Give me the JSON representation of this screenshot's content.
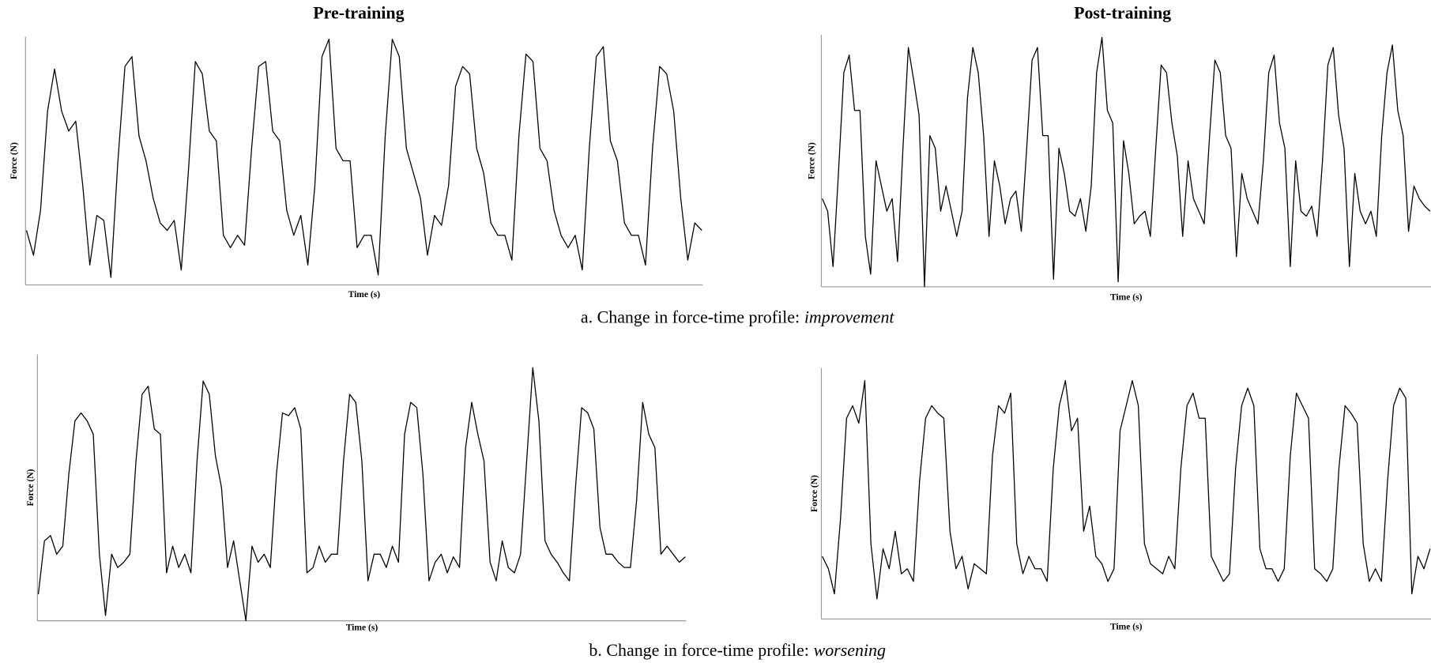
{
  "chart_data": [
    {
      "type": "line",
      "title": "Pre-training",
      "xlabel": "Time (s)",
      "ylabel": "Force (N)",
      "color": "#000000",
      "ylim": [
        0,
        100
      ],
      "values": [
        22,
        12,
        30,
        70,
        87,
        70,
        62,
        66,
        40,
        8,
        28,
        26,
        3,
        50,
        88,
        92,
        60,
        50,
        35,
        25,
        22,
        26,
        6,
        45,
        90,
        85,
        62,
        58,
        20,
        15,
        20,
        16,
        55,
        88,
        90,
        62,
        58,
        30,
        20,
        28,
        8,
        40,
        92,
        99,
        55,
        50,
        50,
        15,
        20,
        20,
        4,
        60,
        99,
        92,
        55,
        45,
        35,
        12,
        28,
        24,
        40,
        80,
        88,
        85,
        55,
        45,
        25,
        20,
        20,
        10,
        60,
        93,
        90,
        55,
        50,
        30,
        20,
        15,
        20,
        6,
        55,
        92,
        96,
        58,
        50,
        25,
        20,
        20,
        8,
        55,
        88,
        85,
        70,
        35,
        10,
        25,
        22
      ]
    },
    {
      "type": "line",
      "title": "Post-training",
      "xlabel": "Time (s)",
      "ylabel": "Force (N)",
      "color": "#000000",
      "ylim": [
        0,
        100
      ],
      "values": [
        35,
        30,
        8,
        45,
        85,
        92,
        70,
        70,
        20,
        5,
        50,
        40,
        30,
        35,
        10,
        55,
        95,
        82,
        68,
        0,
        60,
        55,
        30,
        40,
        30,
        20,
        30,
        75,
        95,
        85,
        60,
        20,
        50,
        40,
        25,
        35,
        38,
        22,
        55,
        90,
        95,
        60,
        60,
        3,
        55,
        45,
        30,
        28,
        35,
        22,
        40,
        85,
        99,
        70,
        65,
        2,
        58,
        45,
        25,
        28,
        30,
        20,
        55,
        88,
        85,
        65,
        52,
        20,
        50,
        35,
        30,
        25,
        60,
        90,
        85,
        60,
        55,
        12,
        45,
        35,
        30,
        25,
        50,
        85,
        92,
        65,
        55,
        8,
        50,
        30,
        28,
        32,
        20,
        50,
        88,
        95,
        68,
        55,
        8,
        45,
        30,
        25,
        30,
        20,
        60,
        85,
        96,
        70,
        60,
        22,
        40,
        35,
        32,
        30
      ]
    },
    {
      "type": "line",
      "xlabel": "Time (s)",
      "ylabel": "Force (N)",
      "color": "#000000",
      "ylim": [
        0,
        100
      ],
      "values": [
        10,
        30,
        32,
        25,
        28,
        55,
        75,
        78,
        75,
        70,
        25,
        2,
        25,
        20,
        22,
        25,
        60,
        85,
        88,
        72,
        70,
        18,
        28,
        20,
        25,
        18,
        60,
        90,
        85,
        62,
        50,
        20,
        30,
        15,
        0,
        28,
        22,
        25,
        20,
        55,
        78,
        77,
        80,
        72,
        18,
        20,
        28,
        22,
        25,
        25,
        60,
        85,
        82,
        60,
        15,
        25,
        25,
        20,
        28,
        22,
        70,
        82,
        80,
        55,
        15,
        22,
        25,
        18,
        24,
        20,
        65,
        82,
        70,
        60,
        22,
        15,
        30,
        20,
        18,
        25,
        60,
        95,
        75,
        30,
        25,
        22,
        18,
        15,
        50,
        80,
        78,
        72,
        35,
        25,
        25,
        22,
        20,
        20,
        45,
        82,
        70,
        65,
        25,
        28,
        25,
        22,
        24
      ]
    },
    {
      "type": "line",
      "xlabel": "Time (s)",
      "ylabel": "Force (N)",
      "color": "#000000",
      "ylim": [
        0,
        100
      ],
      "values": [
        25,
        20,
        10,
        40,
        80,
        85,
        78,
        95,
        30,
        8,
        28,
        20,
        35,
        18,
        20,
        15,
        55,
        80,
        85,
        82,
        80,
        35,
        20,
        25,
        12,
        22,
        20,
        18,
        65,
        85,
        82,
        90,
        30,
        18,
        25,
        20,
        20,
        15,
        60,
        85,
        95,
        75,
        80,
        35,
        45,
        25,
        22,
        15,
        20,
        75,
        85,
        95,
        85,
        30,
        22,
        20,
        18,
        25,
        20,
        60,
        85,
        90,
        80,
        80,
        25,
        20,
        15,
        18,
        60,
        85,
        92,
        85,
        28,
        20,
        20,
        15,
        20,
        65,
        90,
        85,
        80,
        20,
        18,
        15,
        20,
        60,
        85,
        82,
        78,
        30,
        15,
        20,
        15,
        55,
        85,
        92,
        88,
        10,
        25,
        20,
        28
      ]
    }
  ],
  "captions": [
    {
      "text": "a. Change in force-time profile:",
      "emphasis": "improvement"
    },
    {
      "text": "b. Change in force-time profile:",
      "emphasis": "worsening"
    }
  ]
}
